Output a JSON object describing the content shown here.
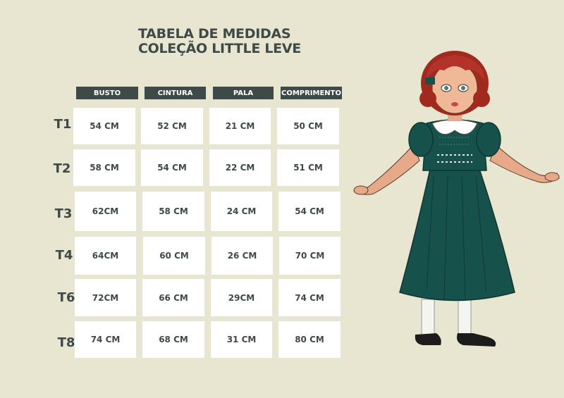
{
  "title": {
    "line1": "TABELA DE MEDIDAS",
    "line2": "COLEÇÃO LITTLE LEVE"
  },
  "table": {
    "headers": [
      "BUSTO",
      "CINTURA",
      "PALA",
      "COMPRIMENTO"
    ],
    "rows": [
      {
        "size": "T1",
        "values": [
          "54 CM",
          "52 CM",
          "21 CM",
          "50 CM"
        ]
      },
      {
        "size": "T2",
        "values": [
          "58 CM",
          "54 CM",
          "22 CM",
          "51 CM"
        ]
      },
      {
        "size": "T3",
        "values": [
          "62CM",
          "58 CM",
          "24 CM",
          "54 CM"
        ]
      },
      {
        "size": "T4",
        "values": [
          "64CM",
          "60 CM",
          "26 CM",
          "70 CM"
        ]
      },
      {
        "size": "T6",
        "values": [
          "72CM",
          "66 CM",
          "29CM",
          "74 CM"
        ]
      },
      {
        "size": "T8",
        "values": [
          "74 CM",
          "68 CM",
          "31 CM",
          "80 CM"
        ]
      }
    ]
  },
  "colors": {
    "background": "#e8e5d0",
    "header": "#3e4a48",
    "text": "#3e4a48",
    "dress": "#17514c"
  },
  "illustration": "girl-in-green-dress-illustration"
}
